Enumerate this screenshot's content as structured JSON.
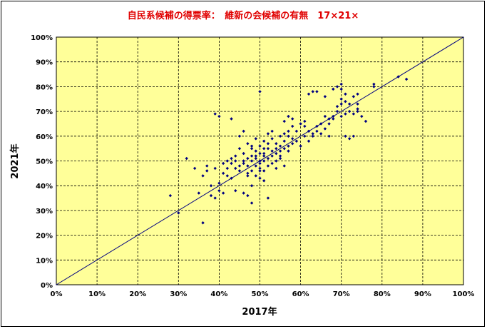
{
  "chart_data": {
    "type": "scatter",
    "title": "自民系候補の得票率：　維新の会候補の有無　17×21×",
    "xlabel": "2017年",
    "ylabel": "2021年",
    "xlim": [
      0,
      1
    ],
    "ylim": [
      0,
      1
    ],
    "x_ticks": [
      "0%",
      "10%",
      "20%",
      "30%",
      "40%",
      "50%",
      "60%",
      "70%",
      "80%",
      "90%",
      "100%"
    ],
    "y_ticks": [
      "0%",
      "10%",
      "20%",
      "30%",
      "40%",
      "50%",
      "60%",
      "70%",
      "80%",
      "90%",
      "100%"
    ],
    "grid": true,
    "plot_background": "#ffff99",
    "marker_color": "#000080",
    "reference_line": {
      "from": [
        0,
        0
      ],
      "to": [
        1,
        1
      ]
    },
    "series": [
      {
        "points": [
          [
            0.28,
            0.36
          ],
          [
            0.3,
            0.29
          ],
          [
            0.32,
            0.51
          ],
          [
            0.34,
            0.47
          ],
          [
            0.35,
            0.37
          ],
          [
            0.36,
            0.44
          ],
          [
            0.36,
            0.25
          ],
          [
            0.37,
            0.46
          ],
          [
            0.37,
            0.48
          ],
          [
            0.38,
            0.4
          ],
          [
            0.38,
            0.36
          ],
          [
            0.39,
            0.69
          ],
          [
            0.39,
            0.47
          ],
          [
            0.39,
            0.35
          ],
          [
            0.4,
            0.41
          ],
          [
            0.4,
            0.38
          ],
          [
            0.4,
            0.68
          ],
          [
            0.41,
            0.49
          ],
          [
            0.41,
            0.45
          ],
          [
            0.41,
            0.37
          ],
          [
            0.42,
            0.5
          ],
          [
            0.42,
            0.47
          ],
          [
            0.42,
            0.44
          ],
          [
            0.43,
            0.43
          ],
          [
            0.43,
            0.51
          ],
          [
            0.43,
            0.49
          ],
          [
            0.43,
            0.67
          ],
          [
            0.44,
            0.52
          ],
          [
            0.44,
            0.5
          ],
          [
            0.44,
            0.47
          ],
          [
            0.44,
            0.38
          ],
          [
            0.45,
            0.48
          ],
          [
            0.45,
            0.55
          ],
          [
            0.45,
            0.46
          ],
          [
            0.45,
            0.6
          ],
          [
            0.46,
            0.5
          ],
          [
            0.46,
            0.53
          ],
          [
            0.46,
            0.49
          ],
          [
            0.46,
            0.62
          ],
          [
            0.46,
            0.37
          ],
          [
            0.47,
            0.51
          ],
          [
            0.47,
            0.48
          ],
          [
            0.47,
            0.57
          ],
          [
            0.47,
            0.44
          ],
          [
            0.47,
            0.36
          ],
          [
            0.47,
            0.45
          ],
          [
            0.48,
            0.52
          ],
          [
            0.48,
            0.5
          ],
          [
            0.48,
            0.56
          ],
          [
            0.48,
            0.46
          ],
          [
            0.48,
            0.33
          ],
          [
            0.48,
            0.55
          ],
          [
            0.48,
            0.4
          ],
          [
            0.49,
            0.51
          ],
          [
            0.49,
            0.48
          ],
          [
            0.49,
            0.54
          ],
          [
            0.49,
            0.59
          ],
          [
            0.49,
            0.44
          ],
          [
            0.49,
            0.52
          ],
          [
            0.5,
            0.5
          ],
          [
            0.5,
            0.53
          ],
          [
            0.5,
            0.49
          ],
          [
            0.5,
            0.56
          ],
          [
            0.5,
            0.46
          ],
          [
            0.5,
            0.78
          ],
          [
            0.5,
            0.43
          ],
          [
            0.5,
            0.47
          ],
          [
            0.51,
            0.52
          ],
          [
            0.51,
            0.55
          ],
          [
            0.51,
            0.5
          ],
          [
            0.51,
            0.58
          ],
          [
            0.51,
            0.42
          ],
          [
            0.51,
            0.53
          ],
          [
            0.51,
            0.46
          ],
          [
            0.52,
            0.55
          ],
          [
            0.52,
            0.51
          ],
          [
            0.52,
            0.61
          ],
          [
            0.52,
            0.35
          ],
          [
            0.52,
            0.57
          ],
          [
            0.52,
            0.48
          ],
          [
            0.53,
            0.54
          ],
          [
            0.53,
            0.52
          ],
          [
            0.53,
            0.49
          ],
          [
            0.53,
            0.59
          ],
          [
            0.53,
            0.62
          ],
          [
            0.54,
            0.5
          ],
          [
            0.54,
            0.55
          ],
          [
            0.54,
            0.53
          ],
          [
            0.54,
            0.47
          ],
          [
            0.54,
            0.57
          ],
          [
            0.55,
            0.56
          ],
          [
            0.55,
            0.52
          ],
          [
            0.55,
            0.6
          ],
          [
            0.55,
            0.54
          ],
          [
            0.55,
            0.51
          ],
          [
            0.56,
            0.58
          ],
          [
            0.56,
            0.48
          ],
          [
            0.56,
            0.55
          ],
          [
            0.56,
            0.61
          ],
          [
            0.56,
            0.66
          ],
          [
            0.57,
            0.6
          ],
          [
            0.57,
            0.56
          ],
          [
            0.57,
            0.62
          ],
          [
            0.57,
            0.68
          ],
          [
            0.57,
            0.54
          ],
          [
            0.58,
            0.59
          ],
          [
            0.58,
            0.57
          ],
          [
            0.58,
            0.67
          ],
          [
            0.58,
            0.64
          ],
          [
            0.59,
            0.58
          ],
          [
            0.59,
            0.62
          ],
          [
            0.6,
            0.65
          ],
          [
            0.6,
            0.56
          ],
          [
            0.61,
            0.6
          ],
          [
            0.61,
            0.66
          ],
          [
            0.61,
            0.64
          ],
          [
            0.62,
            0.58
          ],
          [
            0.62,
            0.62
          ],
          [
            0.62,
            0.77
          ],
          [
            0.63,
            0.61
          ],
          [
            0.63,
            0.78
          ],
          [
            0.63,
            0.6
          ],
          [
            0.64,
            0.64
          ],
          [
            0.64,
            0.78
          ],
          [
            0.64,
            0.62
          ],
          [
            0.65,
            0.65
          ],
          [
            0.65,
            0.61
          ],
          [
            0.66,
            0.68
          ],
          [
            0.66,
            0.76
          ],
          [
            0.66,
            0.63
          ],
          [
            0.67,
            0.67
          ],
          [
            0.67,
            0.6
          ],
          [
            0.67,
            0.65
          ],
          [
            0.68,
            0.68
          ],
          [
            0.68,
            0.79
          ],
          [
            0.68,
            0.67
          ],
          [
            0.69,
            0.7
          ],
          [
            0.69,
            0.72
          ],
          [
            0.69,
            0.8
          ],
          [
            0.7,
            0.79
          ],
          [
            0.7,
            0.73
          ],
          [
            0.7,
            0.68
          ],
          [
            0.7,
            0.81
          ],
          [
            0.7,
            0.75
          ],
          [
            0.71,
            0.69
          ],
          [
            0.71,
            0.77
          ],
          [
            0.71,
            0.6
          ],
          [
            0.71,
            0.74
          ],
          [
            0.72,
            0.7
          ],
          [
            0.72,
            0.59
          ],
          [
            0.72,
            0.73
          ],
          [
            0.73,
            0.69
          ],
          [
            0.73,
            0.6
          ],
          [
            0.73,
            0.76
          ],
          [
            0.74,
            0.7
          ],
          [
            0.74,
            0.71
          ],
          [
            0.74,
            0.77
          ],
          [
            0.74,
            0.73
          ],
          [
            0.75,
            0.68
          ],
          [
            0.76,
            0.66
          ],
          [
            0.78,
            0.81
          ],
          [
            0.78,
            0.8
          ],
          [
            0.84,
            0.84
          ],
          [
            0.86,
            0.83
          ]
        ]
      }
    ]
  }
}
